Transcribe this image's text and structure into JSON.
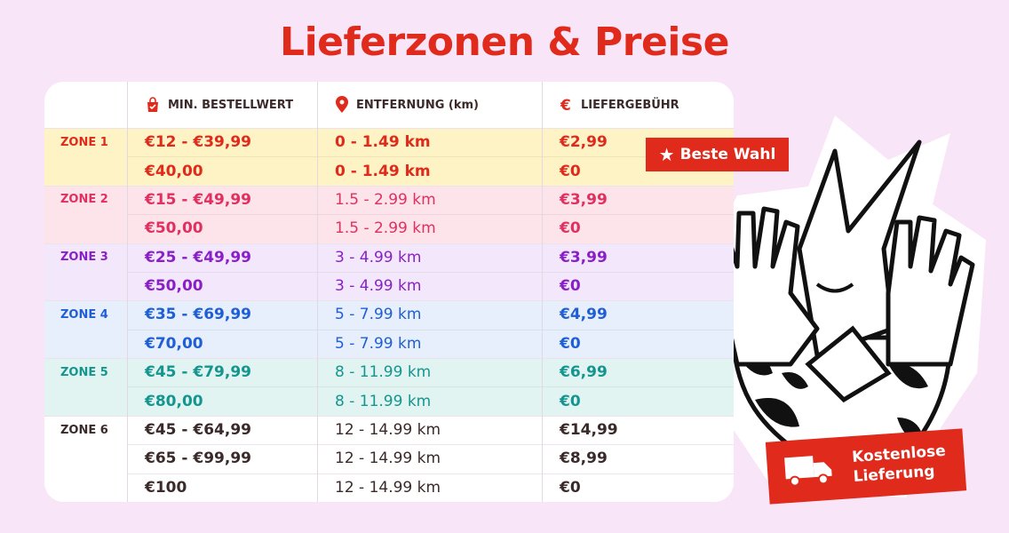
{
  "title": "Lieferzonen & Preise",
  "columns": [
    "MIN. BESTELLWERT",
    "ENTFERNUNG (km)",
    "LIEFERGEBÜHR"
  ],
  "zones": [
    {
      "name": "ZONE 1",
      "color": "#e02a1b",
      "background": "#fdf3c4",
      "rows": [
        [
          "€12 - €39,99",
          "0 - 1.49 km",
          "€2,99"
        ],
        [
          "€40,00",
          "0 - 1.49 km",
          "€0"
        ]
      ]
    },
    {
      "name": "ZONE 2",
      "color": "#e0305f",
      "background": "#fde3ea",
      "rows": [
        [
          "€15 - €49,99",
          "1.5 - 2.99 km",
          "€3,99"
        ],
        [
          "€50,00",
          "1.5 - 2.99 km",
          "€0"
        ]
      ]
    },
    {
      "name": "ZONE 3",
      "color": "#8a1fc8",
      "background": "#f3e8fb",
      "rows": [
        [
          "€25 - €49,99",
          "3 - 4.99 km",
          "€3,99"
        ],
        [
          "€50,00",
          "3 - 4.99 km",
          "€0"
        ]
      ]
    },
    {
      "name": "ZONE 4",
      "color": "#1f5fd6",
      "background": "#e7eefc",
      "rows": [
        [
          "€35 - €69,99",
          "5 - 7.99 km",
          "€4,99"
        ],
        [
          "€70,00",
          "5 - 7.99 km",
          "€0"
        ]
      ]
    },
    {
      "name": "ZONE 5",
      "color": "#14958f",
      "background": "#e2f4f1",
      "rows": [
        [
          "€45 - €79,99",
          "8 - 11.99 km",
          "€6,99"
        ],
        [
          "€80,00",
          "8 - 11.99 km",
          "€0"
        ]
      ]
    },
    {
      "name": "ZONE 6",
      "color": "#3a2a2a",
      "background": "#ffffff",
      "rows": [
        [
          "€45 - €64,99",
          "12 - 14.99 km",
          "€14,99"
        ],
        [
          "€65 - €99,99",
          "12 - 14.99 km",
          "€8,99"
        ],
        [
          "€100",
          "12 - 14.99 km",
          "€0"
        ]
      ]
    }
  ],
  "badges": {
    "best": "Beste Wahl",
    "free": [
      "Kostenlose",
      "Lieferung"
    ]
  }
}
